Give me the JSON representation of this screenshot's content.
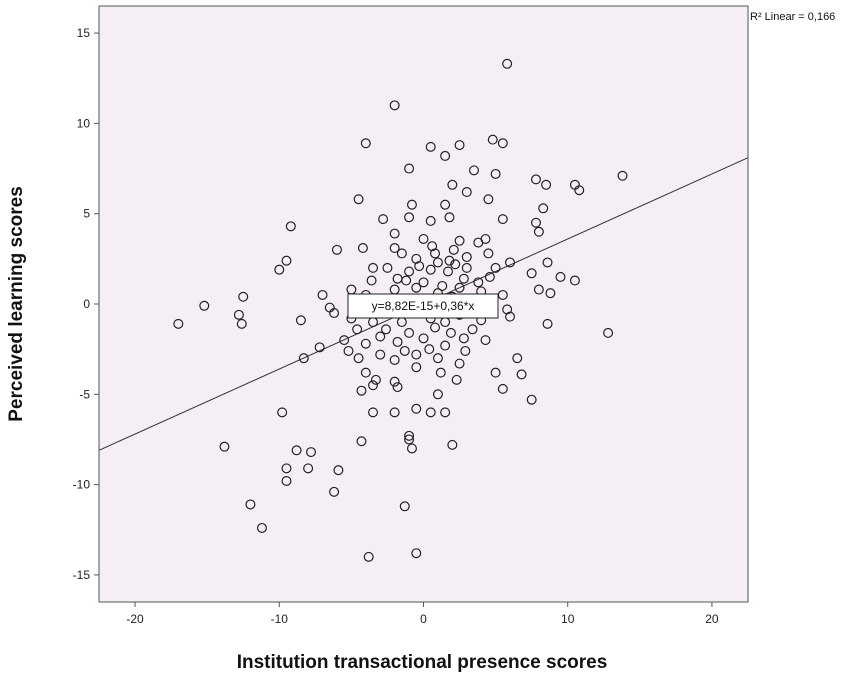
{
  "chart_data": {
    "type": "scatter",
    "xlabel": "Institution transactional presence scores",
    "ylabel": "Perceived learning scores",
    "xlim": [
      -22.5,
      22.5
    ],
    "ylim": [
      -16.5,
      16.5
    ],
    "x_ticks": [
      -20,
      -10,
      0,
      10,
      20
    ],
    "y_ticks": [
      -15,
      -10,
      -5,
      0,
      5,
      10,
      15
    ],
    "x_tick_labels": [
      "-20",
      "-10",
      "0",
      "10",
      "20"
    ],
    "y_tick_labels": [
      "-15",
      "-10",
      "-5",
      "0",
      "5",
      "10",
      "15"
    ],
    "grid": false,
    "plot_background": "#f5eef5",
    "marker_color": "#222222",
    "fit_line": {
      "type": "linear",
      "intercept": 8.82e-15,
      "slope": 0.36,
      "equation_label": "y=8,82E-15+0,36*x",
      "r2_label": "R² Linear = 0,166"
    },
    "points": [
      [
        5.8,
        13.3
      ],
      [
        -2.0,
        11.0
      ],
      [
        -4.0,
        8.9
      ],
      [
        0.5,
        8.7
      ],
      [
        2.5,
        8.8
      ],
      [
        4.8,
        9.1
      ],
      [
        5.5,
        8.9
      ],
      [
        1.5,
        8.2
      ],
      [
        3.5,
        7.4
      ],
      [
        5.0,
        7.2
      ],
      [
        -1.0,
        7.5
      ],
      [
        7.8,
        6.9
      ],
      [
        8.5,
        6.6
      ],
      [
        10.5,
        6.6
      ],
      [
        13.8,
        7.1
      ],
      [
        10.8,
        6.3
      ],
      [
        2.0,
        6.6
      ],
      [
        3.0,
        6.2
      ],
      [
        4.5,
        5.8
      ],
      [
        -4.5,
        5.8
      ],
      [
        -0.8,
        5.5
      ],
      [
        1.5,
        5.5
      ],
      [
        8.3,
        5.3
      ],
      [
        -2.8,
        4.7
      ],
      [
        -1.0,
        4.8
      ],
      [
        0.5,
        4.6
      ],
      [
        1.8,
        4.8
      ],
      [
        5.5,
        4.7
      ],
      [
        7.8,
        4.5
      ],
      [
        8.0,
        4.0
      ],
      [
        -9.2,
        4.3
      ],
      [
        -2.0,
        3.9
      ],
      [
        0.0,
        3.6
      ],
      [
        2.5,
        3.5
      ],
      [
        3.8,
        3.4
      ],
      [
        4.3,
        3.6
      ],
      [
        -6.0,
        3.0
      ],
      [
        -4.2,
        3.1
      ],
      [
        -2.0,
        3.1
      ],
      [
        -1.5,
        2.8
      ],
      [
        -0.5,
        2.5
      ],
      [
        0.8,
        2.8
      ],
      [
        2.1,
        3.0
      ],
      [
        3.0,
        2.6
      ],
      [
        4.5,
        2.8
      ],
      [
        6.0,
        2.3
      ],
      [
        8.6,
        2.3
      ],
      [
        -9.5,
        2.4
      ],
      [
        -10.0,
        1.9
      ],
      [
        -3.5,
        2.0
      ],
      [
        -2.5,
        2.0
      ],
      [
        -1.0,
        1.8
      ],
      [
        0.5,
        1.9
      ],
      [
        1.7,
        1.8
      ],
      [
        3.0,
        2.0
      ],
      [
        5.0,
        2.0
      ],
      [
        7.5,
        1.7
      ],
      [
        9.5,
        1.5
      ],
      [
        10.5,
        1.3
      ],
      [
        -12.5,
        0.4
      ],
      [
        -7.0,
        0.5
      ],
      [
        -5.0,
        0.8
      ],
      [
        -4.0,
        0.5
      ],
      [
        -2.0,
        0.8
      ],
      [
        -0.5,
        0.9
      ],
      [
        1.0,
        0.6
      ],
      [
        2.5,
        0.9
      ],
      [
        4.0,
        0.7
      ],
      [
        5.5,
        0.5
      ],
      [
        8.0,
        0.8
      ],
      [
        8.8,
        0.6
      ],
      [
        -15.2,
        -0.1
      ],
      [
        -17.0,
        -1.1
      ],
      [
        -12.8,
        -0.6
      ],
      [
        -12.6,
        -1.1
      ],
      [
        -8.5,
        -0.9
      ],
      [
        -6.2,
        -0.5
      ],
      [
        -5.0,
        -0.8
      ],
      [
        -3.5,
        -1.0
      ],
      [
        -2.5,
        -0.5
      ],
      [
        -1.5,
        -1.0
      ],
      [
        -0.5,
        -0.4
      ],
      [
        0.5,
        -0.8
      ],
      [
        1.5,
        -1.0
      ],
      [
        2.5,
        -0.6
      ],
      [
        4.0,
        -0.9
      ],
      [
        6.0,
        -0.7
      ],
      [
        8.6,
        -1.1
      ],
      [
        12.8,
        -1.6
      ],
      [
        -7.2,
        -2.4
      ],
      [
        -5.5,
        -2.0
      ],
      [
        -4.0,
        -2.2
      ],
      [
        -3.0,
        -1.8
      ],
      [
        -1.8,
        -2.1
      ],
      [
        0.0,
        -1.9
      ],
      [
        1.5,
        -2.3
      ],
      [
        2.8,
        -1.9
      ],
      [
        4.3,
        -2.0
      ],
      [
        -8.3,
        -3.0
      ],
      [
        -4.5,
        -3.0
      ],
      [
        -3.0,
        -2.8
      ],
      [
        -2.0,
        -3.1
      ],
      [
        -0.5,
        -2.8
      ],
      [
        1.0,
        -3.0
      ],
      [
        2.5,
        -3.3
      ],
      [
        6.5,
        -3.0
      ],
      [
        -4.0,
        -3.8
      ],
      [
        -3.5,
        -4.5
      ],
      [
        -2.0,
        -4.3
      ],
      [
        -0.5,
        -3.5
      ],
      [
        1.2,
        -3.8
      ],
      [
        2.3,
        -4.2
      ],
      [
        5.0,
        -3.8
      ],
      [
        6.8,
        -3.9
      ],
      [
        -3.3,
        -4.2
      ],
      [
        -1.8,
        -4.6
      ],
      [
        5.5,
        -4.7
      ],
      [
        -4.3,
        -4.8
      ],
      [
        1.0,
        -5.0
      ],
      [
        7.5,
        -5.3
      ],
      [
        -9.8,
        -6.0
      ],
      [
        -3.5,
        -6.0
      ],
      [
        -2.0,
        -6.0
      ],
      [
        -0.5,
        -5.8
      ],
      [
        0.5,
        -6.0
      ],
      [
        1.5,
        -6.0
      ],
      [
        -4.3,
        -7.6
      ],
      [
        -1.0,
        -7.5
      ],
      [
        -1.0,
        -7.3
      ],
      [
        -0.8,
        -8.0
      ],
      [
        2.0,
        -7.8
      ],
      [
        -13.8,
        -7.9
      ],
      [
        -8.8,
        -8.1
      ],
      [
        -7.8,
        -8.2
      ],
      [
        -9.5,
        -9.1
      ],
      [
        -8.0,
        -9.1
      ],
      [
        -5.9,
        -9.2
      ],
      [
        -9.5,
        -9.8
      ],
      [
        -6.2,
        -10.4
      ],
      [
        -12.0,
        -11.1
      ],
      [
        -1.3,
        -11.2
      ],
      [
        -11.2,
        -12.4
      ],
      [
        -3.8,
        -14.0
      ],
      [
        -0.5,
        -13.8
      ],
      [
        -5.2,
        -2.6
      ],
      [
        -2.8,
        0.2
      ],
      [
        0.2,
        0.1
      ],
      [
        3.2,
        0.3
      ],
      [
        -6.5,
        -0.2
      ],
      [
        5.8,
        -0.3
      ],
      [
        -1.2,
        1.3
      ],
      [
        0.0,
        1.2
      ],
      [
        1.3,
        1.0
      ],
      [
        2.8,
        1.4
      ],
      [
        3.8,
        1.2
      ],
      [
        4.6,
        1.5
      ],
      [
        -3.6,
        1.3
      ],
      [
        -1.8,
        1.4
      ],
      [
        0.6,
        3.2
      ],
      [
        1.8,
        2.4
      ],
      [
        -0.3,
        2.1
      ],
      [
        1.0,
        2.3
      ],
      [
        2.2,
        2.2
      ],
      [
        -2.6,
        -1.4
      ],
      [
        -1.0,
        -1.6
      ],
      [
        0.8,
        -1.3
      ],
      [
        1.9,
        -1.6
      ],
      [
        3.4,
        -1.4
      ],
      [
        -4.6,
        -1.4
      ],
      [
        2.9,
        -2.6
      ],
      [
        -1.3,
        -2.6
      ],
      [
        0.4,
        -2.5
      ],
      [
        -3.3,
        -0.3
      ],
      [
        -0.9,
        0.3
      ],
      [
        2.0,
        0.4
      ],
      [
        3.8,
        -0.2
      ]
    ]
  }
}
